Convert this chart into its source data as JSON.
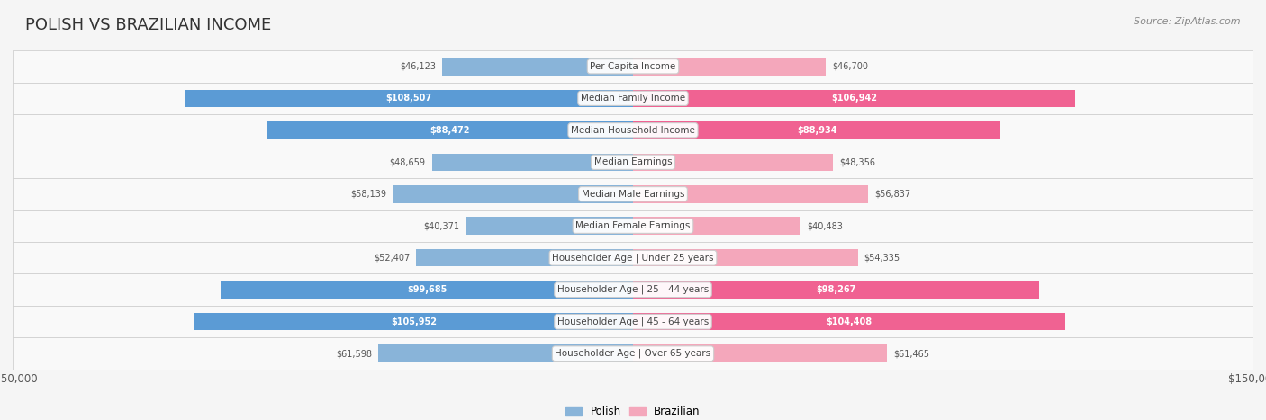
{
  "title": "POLISH VS BRAZILIAN INCOME",
  "source": "Source: ZipAtlas.com",
  "categories": [
    "Per Capita Income",
    "Median Family Income",
    "Median Household Income",
    "Median Earnings",
    "Median Male Earnings",
    "Median Female Earnings",
    "Householder Age | Under 25 years",
    "Householder Age | 25 - 44 years",
    "Householder Age | 45 - 64 years",
    "Householder Age | Over 65 years"
  ],
  "polish_values": [
    46123,
    108507,
    88472,
    48659,
    58139,
    40371,
    52407,
    99685,
    105952,
    61598
  ],
  "brazilian_values": [
    46700,
    106942,
    88934,
    48356,
    56837,
    40483,
    54335,
    98267,
    104408,
    61465
  ],
  "polish_color": "#89b4d9",
  "polish_color_highlight": "#5b9bd5",
  "brazilian_color": "#f4a7bb",
  "brazilian_color_highlight": "#f06292",
  "max_value": 150000,
  "background_color": "#f5f5f5",
  "row_bg_color": "#ffffff",
  "label_bg_color": "#f0f0f0",
  "title_fontsize": 13,
  "bar_height": 0.55,
  "axis_label_fontsize": 9
}
